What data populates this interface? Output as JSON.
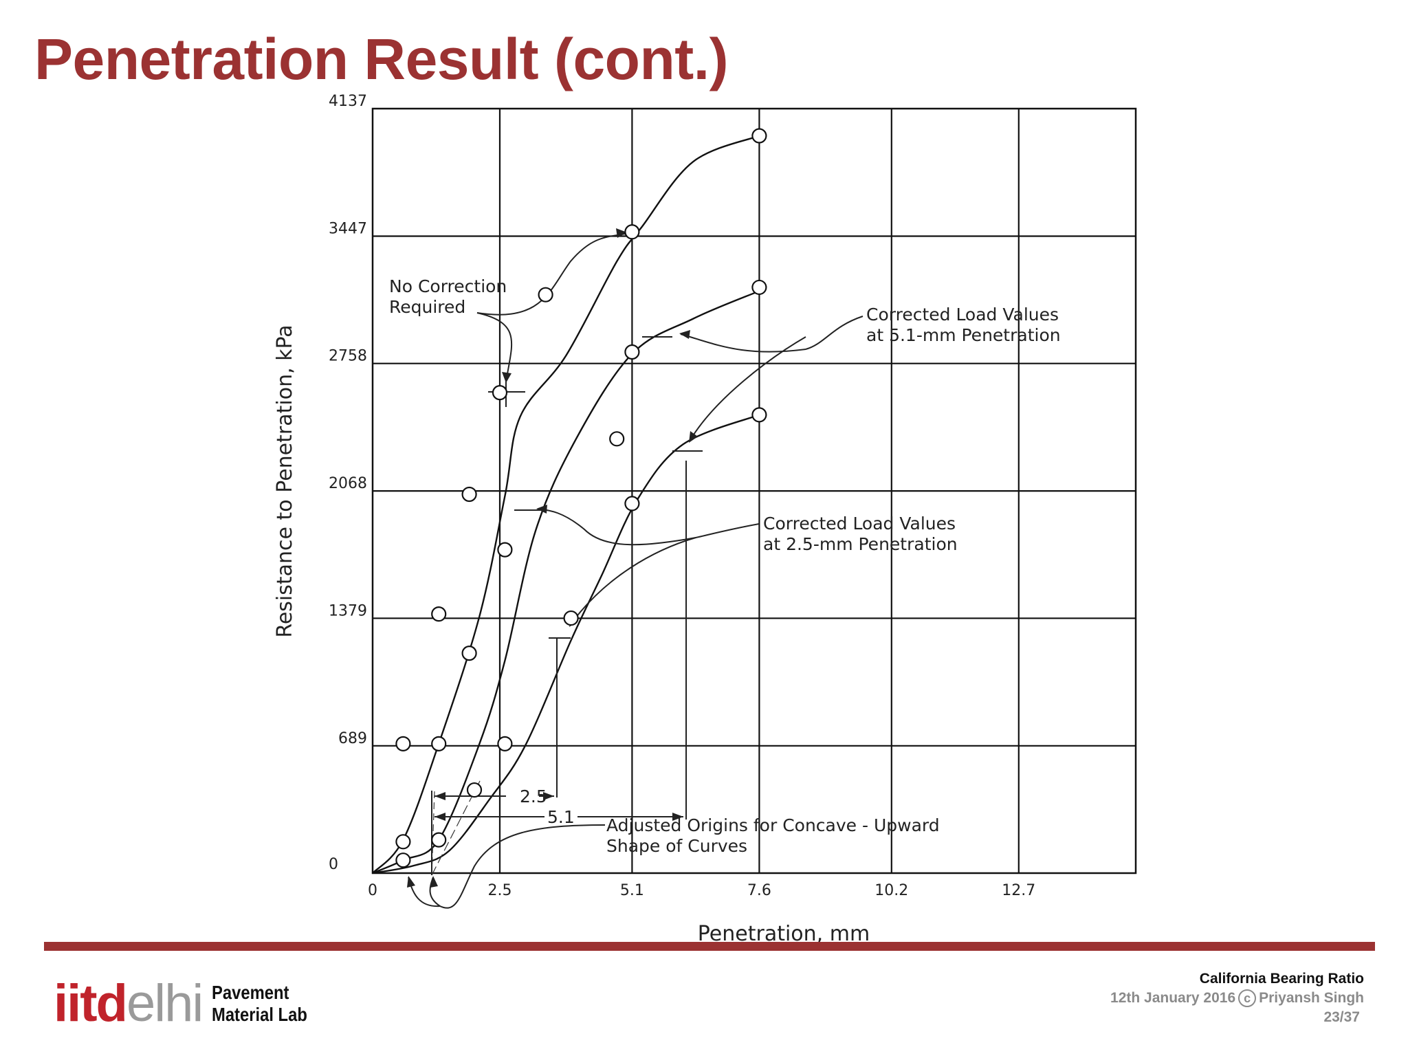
{
  "slide": {
    "title": "Penetration Result (cont.)"
  },
  "chart_data": {
    "type": "line",
    "xlabel": "Penetration, mm",
    "ylabel": "Resistance to Penetration, kPa",
    "xlim": [
      0,
      15
    ],
    "ylim": [
      0,
      4137
    ],
    "x_ticks": [
      "0",
      "2.5",
      "5.1",
      "7.6",
      "10.2",
      "12.7"
    ],
    "y_ticks": [
      "0",
      "689",
      "1379",
      "2068",
      "2758",
      "3447",
      "4137"
    ],
    "grid": true,
    "series": [
      {
        "points": [
          [
            0,
            0
          ],
          [
            0.6,
            180
          ],
          [
            1.3,
            700
          ],
          [
            2.1,
            1390
          ],
          [
            2.6,
            2040
          ],
          [
            2.9,
            2470
          ],
          [
            3.8,
            2800
          ],
          [
            4.8,
            3310
          ],
          [
            5.3,
            3500
          ],
          [
            6.3,
            3850
          ],
          [
            7.6,
            3990
          ]
        ]
      },
      {
        "points": [
          [
            0,
            0
          ],
          [
            0.6,
            70
          ],
          [
            1.3,
            180
          ],
          [
            2.1,
            700
          ],
          [
            2.6,
            1150
          ],
          [
            3.2,
            1850
          ],
          [
            4.0,
            2350
          ],
          [
            5.1,
            2810
          ],
          [
            6.3,
            3000
          ],
          [
            7.6,
            3150
          ]
        ]
      },
      {
        "points": [
          [
            0,
            0
          ],
          [
            0.8,
            40
          ],
          [
            1.5,
            120
          ],
          [
            2.3,
            400
          ],
          [
            3.0,
            690
          ],
          [
            3.9,
            1260
          ],
          [
            4.5,
            1610
          ],
          [
            5.2,
            2020
          ],
          [
            6.1,
            2320
          ],
          [
            7.6,
            2480
          ]
        ]
      }
    ],
    "markers": [
      {
        "x": 2.5,
        "y": 2600
      },
      {
        "x": 3.4,
        "y": 3130
      },
      {
        "x": 4.8,
        "y": 2350
      },
      {
        "x": 5.1,
        "y": 3470
      },
      {
        "x": 7.6,
        "y": 3990
      },
      {
        "x": 1.3,
        "y": 1402
      },
      {
        "x": 1.9,
        "y": 2050
      },
      {
        "x": 0.6,
        "y": 700
      },
      {
        "x": 0.6,
        "y": 170
      },
      {
        "x": 1.3,
        "y": 700
      },
      {
        "x": 2.6,
        "y": 1750
      },
      {
        "x": 1.9,
        "y": 1190
      },
      {
        "x": 5.1,
        "y": 2820
      },
      {
        "x": 7.6,
        "y": 3170
      },
      {
        "x": 0.6,
        "y": 70
      },
      {
        "x": 1.3,
        "y": 180
      },
      {
        "x": 2.0,
        "y": 450
      },
      {
        "x": 2.6,
        "y": 700
      },
      {
        "x": 3.9,
        "y": 1380
      },
      {
        "x": 5.1,
        "y": 2000
      },
      {
        "x": 7.6,
        "y": 2480
      }
    ],
    "annotations": [
      {
        "lines": [
          "No Correction",
          "Required"
        ]
      },
      {
        "lines": [
          "Corrected Load Values",
          "at 5.1-mm Penetration"
        ]
      },
      {
        "lines": [
          "Corrected Load Values",
          "at 2.5-mm Penetration"
        ]
      },
      {
        "lines": [
          "Adjusted Origins for Concave - Upward",
          "Shape of Curves"
        ]
      }
    ],
    "dimension_labels": [
      "2.5",
      "5.1"
    ]
  },
  "footer": {
    "logo_iitd": "iitd",
    "logo_elhi": "elhi",
    "lab_line1": "Pavement",
    "lab_line2": "Material Lab",
    "topic": "California Bearing Ratio",
    "date": "12th January 2016",
    "copyright_symbol": "c",
    "author": "Priyansh Singh",
    "page": "23/37"
  }
}
